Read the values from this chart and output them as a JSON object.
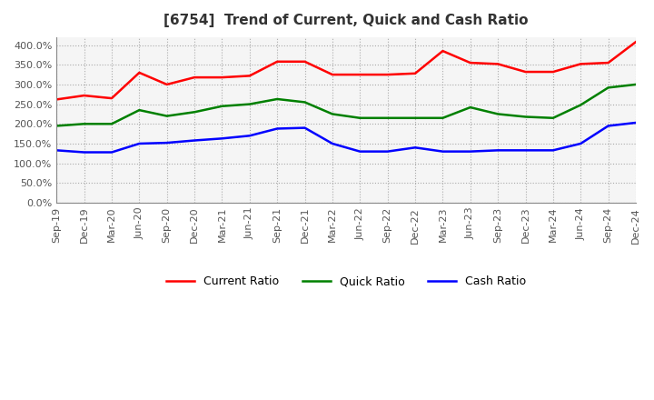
{
  "title": "[6754]  Trend of Current, Quick and Cash Ratio",
  "x_labels": [
    "Sep-19",
    "Dec-19",
    "Mar-20",
    "Jun-20",
    "Sep-20",
    "Dec-20",
    "Mar-21",
    "Jun-21",
    "Sep-21",
    "Dec-21",
    "Mar-22",
    "Jun-22",
    "Sep-22",
    "Dec-22",
    "Mar-23",
    "Jun-23",
    "Sep-23",
    "Dec-23",
    "Mar-24",
    "Jun-24",
    "Sep-24",
    "Dec-24"
  ],
  "current_ratio": [
    262,
    272,
    265,
    330,
    300,
    318,
    318,
    322,
    358,
    358,
    325,
    325,
    325,
    328,
    385,
    355,
    352,
    332,
    332,
    352,
    355,
    408
  ],
  "quick_ratio": [
    195,
    200,
    200,
    235,
    220,
    230,
    245,
    250,
    263,
    255,
    225,
    215,
    215,
    215,
    215,
    242,
    225,
    218,
    215,
    248,
    292,
    300
  ],
  "cash_ratio": [
    133,
    128,
    128,
    150,
    152,
    158,
    163,
    170,
    188,
    190,
    150,
    130,
    130,
    140,
    130,
    130,
    133,
    133,
    133,
    150,
    195,
    203
  ],
  "current_color": "#ff0000",
  "quick_color": "#008000",
  "cash_color": "#0000ff",
  "ylim": [
    0,
    420
  ],
  "yticks": [
    0,
    50,
    100,
    150,
    200,
    250,
    300,
    350,
    400
  ],
  "background_color": "#ffffff",
  "plot_bg_color": "#f5f5f5",
  "grid_color": "#aaaaaa",
  "title_color": "#333333"
}
